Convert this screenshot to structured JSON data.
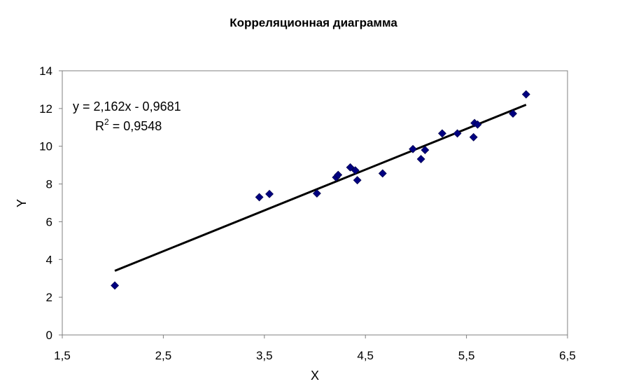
{
  "chart_data": {
    "type": "scatter",
    "title": "Корреляционная диаграмма",
    "xlabel": "X",
    "ylabel": "Y",
    "xlim": [
      1.5,
      6.5
    ],
    "ylim": [
      0,
      14
    ],
    "xticks": [
      "1,5",
      "2,5",
      "3,5",
      "4,5",
      "5,5",
      "6,5"
    ],
    "yticks": [
      "0",
      "2",
      "4",
      "6",
      "8",
      "10",
      "12",
      "14"
    ],
    "grid": false,
    "colors": {
      "marker": "#000080",
      "trendline": "#000000",
      "plot_border": "#808080"
    },
    "series": [
      {
        "marker": "diamond",
        "points": [
          [
            2.02,
            2.62
          ],
          [
            3.45,
            7.3
          ],
          [
            3.55,
            7.47
          ],
          [
            4.02,
            7.5
          ],
          [
            4.21,
            8.35
          ],
          [
            4.23,
            8.48
          ],
          [
            4.35,
            8.88
          ],
          [
            4.4,
            8.72
          ],
          [
            4.42,
            8.2
          ],
          [
            4.67,
            8.56
          ],
          [
            4.97,
            9.85
          ],
          [
            5.05,
            9.32
          ],
          [
            5.09,
            9.8
          ],
          [
            5.26,
            10.68
          ],
          [
            5.41,
            10.68
          ],
          [
            5.57,
            10.48
          ],
          [
            5.58,
            11.23
          ],
          [
            5.61,
            11.15
          ],
          [
            5.96,
            11.73
          ],
          [
            6.09,
            12.75
          ]
        ]
      }
    ],
    "trendline": {
      "type": "linear",
      "slope": 2.162,
      "intercept": -0.9681,
      "x_range": [
        2.02,
        6.09
      ],
      "equation_label": "y = 2,162x - 0,9681",
      "r2_prefix": "R",
      "r2_sup": "2",
      "r2_value": " = 0,9548"
    }
  }
}
